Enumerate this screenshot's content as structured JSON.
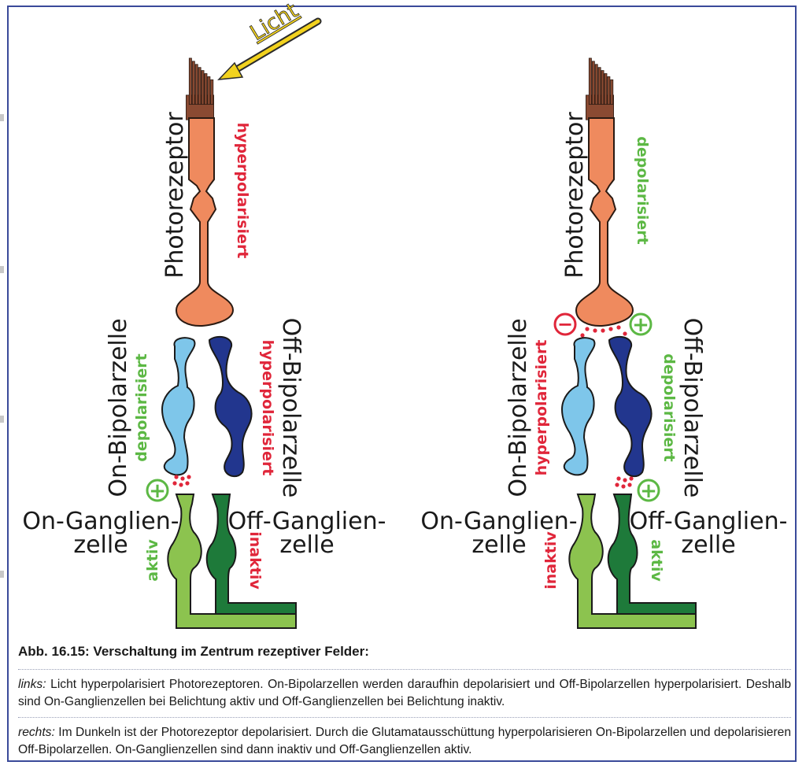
{
  "labels": {
    "light": "Licht",
    "photoreceptor": "Photorezeptor",
    "on_bipolar": "On-Bipolarzelle",
    "off_bipolar": "Off-Bipolarzelle",
    "on_ganglion_1": "On-Ganglien-",
    "on_ganglion_2": "zelle",
    "off_ganglion_1": "Off-Ganglien-",
    "off_ganglion_2": "zelle"
  },
  "left": {
    "photoreceptor_state": "hyperpolarisiert",
    "on_bipolar_state": "depolarisiert",
    "off_bipolar_state": "hyperpolarisiert",
    "on_ganglion_state": "aktiv",
    "off_ganglion_state": "inaktiv"
  },
  "right": {
    "photoreceptor_state": "depolarisiert",
    "on_bipolar_state": "hyperpolarisiert",
    "off_bipolar_state": "depolarisiert",
    "on_ganglion_state": "inaktiv",
    "off_ganglion_state": "aktiv"
  },
  "symbols": {
    "plus": "+",
    "minus": "−"
  },
  "caption": {
    "title": "Abb. 16.15: Verschaltung im Zentrum rezeptiver Felder:",
    "left_label": "links:",
    "left_text": " Licht hyperpolarisiert Photorezeptoren. On-Bipolarzellen werden daraufhin depolarisiert und Off-Bipolarzellen hyperpolarisiert. Deshalb sind On-Ganglienzellen bei Belichtung aktiv und Off-Ganglienzellen bei Belichtung inaktiv.",
    "right_label": "rechts:",
    "right_text": " Im Dunkeln ist der Photorezeptor depolarisiert. Durch die Glutamatausschüttung hyperpolarisieren On-Bipolarzellen und depolarisieren Off-Bipolarzellen. On-Ganglienzellen sind dann inaktiv und Off-Ganglienzellen aktiv."
  },
  "colors": {
    "photoreceptor": "#ef8a5e",
    "outer_segment": "#8a4a32",
    "on_bipolar": "#7ec6ea",
    "off_bipolar": "#22368e",
    "on_ganglion": "#8cc34f",
    "off_ganglion": "#1e7a3a",
    "hyper_red": "#e0263a",
    "depol_green": "#5cb844",
    "arrow_yellow": "#f2d21e",
    "frame": "#3a4a9a"
  }
}
